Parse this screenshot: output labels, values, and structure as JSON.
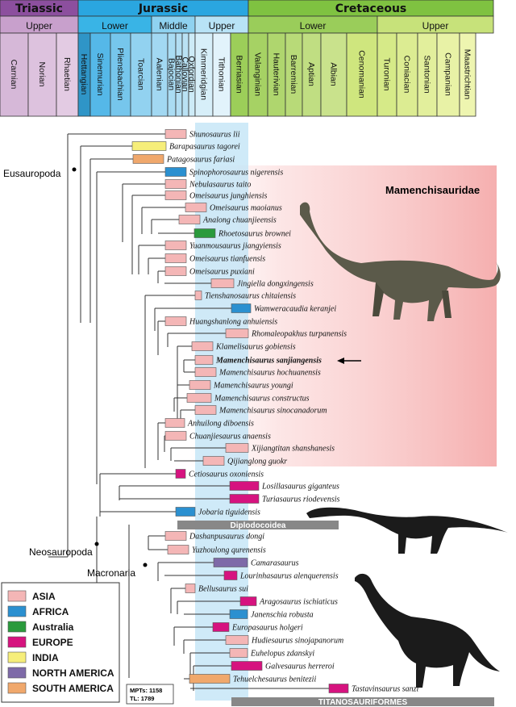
{
  "timescale": {
    "periods": [
      {
        "label": "Triassic",
        "color": "#8c4f9e"
      },
      {
        "label": "Jurassic",
        "color": "#2aa6e0"
      },
      {
        "label": "Cretaceous",
        "color": "#7fc241"
      }
    ],
    "epochs": [
      {
        "label": "Upper",
        "color": "#c8a0cc"
      },
      {
        "label": "Lower",
        "color": "#39b4e6"
      },
      {
        "label": "Middle",
        "color": "#8fd2f0"
      },
      {
        "label": "Upper",
        "color": "#b8e3f6"
      },
      {
        "label": "Lower",
        "color": "#9acd5a"
      },
      {
        "label": "Upper",
        "color": "#c7e27a"
      }
    ],
    "stages": [
      {
        "label": "Carnian",
        "color": "#d6b8d8"
      },
      {
        "label": "Norian",
        "color": "#ddc2de"
      },
      {
        "label": "Rhaetian",
        "color": "#e3cbe3"
      },
      {
        "label": "Hettangian",
        "color": "#2f95c7"
      },
      {
        "label": "Sinemurian",
        "color": "#55b8e8"
      },
      {
        "label": "Pliensbachian",
        "color": "#76c6ec"
      },
      {
        "label": "Toarcian",
        "color": "#92d2f0"
      },
      {
        "label": "Aalenian",
        "color": "#a2d8f2"
      },
      {
        "label": "Bajocian",
        "color": "#aadcf3"
      },
      {
        "label": "Bathonian",
        "color": "#b2def3"
      },
      {
        "label": "Callovian",
        "color": "#bae2f4"
      },
      {
        "label": "Oxfordian",
        "color": "#cdebf7"
      },
      {
        "label": "Kimmeridgian",
        "color": "#d7eff9"
      },
      {
        "label": "Tithonian",
        "color": "#e2f3fb"
      },
      {
        "label": "Berriasian",
        "color": "#9cce59"
      },
      {
        "label": "Valanginian",
        "color": "#a6d264"
      },
      {
        "label": "Hauterivian",
        "color": "#afd66e"
      },
      {
        "label": "Barremian",
        "color": "#b8da78"
      },
      {
        "label": "Aptian",
        "color": "#c0de82"
      },
      {
        "label": "Albian",
        "color": "#c9e28c"
      },
      {
        "label": "Cenomanian",
        "color": "#cfe67e"
      },
      {
        "label": "Turonian",
        "color": "#d6ea88"
      },
      {
        "label": "Coniacian",
        "color": "#dcec92"
      },
      {
        "label": "Santonian",
        "color": "#e2ef9c"
      },
      {
        "label": "Campanian",
        "color": "#e8f2a6"
      },
      {
        "label": "Maastrichtian",
        "color": "#eef5b0"
      }
    ]
  },
  "taxa": [
    {
      "name": "Shunosaurus lii",
      "region": "ASIA"
    },
    {
      "name": "Barapasaurus tagorei",
      "region": "INDIA"
    },
    {
      "name": "Patagosaurus fariasi",
      "region": "SOUTH AMERICA"
    },
    {
      "name": "Spinophorosaurus nigerensis",
      "region": "AFRICA"
    },
    {
      "name": "Nebulasaurus taito",
      "region": "ASIA"
    },
    {
      "name": "Omeisaurus junghiensis",
      "region": "ASIA"
    },
    {
      "name": "Omeisaurus maoianus",
      "region": "ASIA"
    },
    {
      "name": "Analong chuanjieensis",
      "region": "ASIA"
    },
    {
      "name": "Rhoetosaurus brownei",
      "region": "Australia"
    },
    {
      "name": "Yuanmousaurus jiangyiensis",
      "region": "ASIA"
    },
    {
      "name": "Omeisaurus tianfuensis",
      "region": "ASIA"
    },
    {
      "name": "Omeisaurus puxiani",
      "region": "ASIA"
    },
    {
      "name": "Jingiella dongxingensis",
      "region": "ASIA"
    },
    {
      "name": "Tienshanosaurus chitaiensis",
      "region": "ASIA"
    },
    {
      "name": "Wamweracaudia keranjei",
      "region": "AFRICA"
    },
    {
      "name": "Huangshanlong anhuiensis",
      "region": "ASIA"
    },
    {
      "name": "Rhomaleopakhus turpanensis",
      "region": "ASIA"
    },
    {
      "name": "Klamelisaurus gobiensis",
      "region": "ASIA"
    },
    {
      "name": "Mamenchisaurus sanjiangensis",
      "region": "ASIA"
    },
    {
      "name": "Mamenchisaurus hochuanensis",
      "region": "ASIA"
    },
    {
      "name": "Mamenchisaurus youngi",
      "region": "ASIA"
    },
    {
      "name": "Mamenchisaurus constructus",
      "region": "ASIA"
    },
    {
      "name": "Mamenchisaurus sinocanadorum",
      "region": "ASIA"
    },
    {
      "name": "Anhuilong diboensis",
      "region": "ASIA"
    },
    {
      "name": "Chuanjiesaurus anaensis",
      "region": "ASIA"
    },
    {
      "name": "Xijiangtitan shanshanesis",
      "region": "ASIA"
    },
    {
      "name": "Qijianglong guokr",
      "region": "ASIA"
    },
    {
      "name": "Cetiosaurus oxoniensis",
      "region": "EUROPE"
    },
    {
      "name": "Losillasaurus giganteus",
      "region": "EUROPE"
    },
    {
      "name": "Turiasaurus riodevensis",
      "region": "EUROPE"
    },
    {
      "name": "Jobaria tiguidensis",
      "region": "AFRICA"
    },
    {
      "name": "Dashanpusaurus dongi",
      "region": "ASIA"
    },
    {
      "name": "Yuzhoulong qurenensis",
      "region": "ASIA"
    },
    {
      "name": "Camarasaurus",
      "region": "NORTH AMERICA"
    },
    {
      "name": "Lourinhasaurus alenquerensis",
      "region": "EUROPE"
    },
    {
      "name": "Bellusaurus sui",
      "region": "ASIA"
    },
    {
      "name": "Aragosaurus ischiaticus",
      "region": "EUROPE"
    },
    {
      "name": "Janenschia robusta",
      "region": "AFRICA"
    },
    {
      "name": "Europasaurus holgeri",
      "region": "EUROPE"
    },
    {
      "name": "Hudiesaurus sinojapanorum",
      "region": "ASIA"
    },
    {
      "name": "Euhelopus zdanskyi",
      "region": "ASIA"
    },
    {
      "name": "Galvesaurus herreroi",
      "region": "EUROPE"
    },
    {
      "name": "Tehuelchesaurus benitezii",
      "region": "SOUTH AMERICA"
    },
    {
      "name": "Tastavinsaurus sanzi",
      "region": "EUROPE"
    }
  ],
  "highlight_taxon": "Mamenchisaurus sanjiangensis",
  "clade_bars": [
    {
      "label": "Diplodocoidea"
    },
    {
      "label": "TITANOSAURIFORMES"
    }
  ],
  "clade_labels": {
    "eusauropoda": "Eusauropoda",
    "neosauropoda": "Neosauropoda",
    "macronaria": "Macronaria",
    "mamenchisauridae": "Mamenchisauridae"
  },
  "legend": [
    {
      "label": "ASIA",
      "color": "#f4b6b6"
    },
    {
      "label": "AFRICA",
      "color": "#2b90d0"
    },
    {
      "label": "Australia",
      "color": "#2a9a3c"
    },
    {
      "label": "EUROPE",
      "color": "#d6137f"
    },
    {
      "label": "INDIA",
      "color": "#f6ee7a"
    },
    {
      "label": "NORTH AMERICA",
      "color": "#7e6aa8"
    },
    {
      "label": "SOUTH AMERICA",
      "color": "#f0a86c"
    }
  ],
  "stats": {
    "mpts": "MPTs: 1158",
    "tl": "TL: 1789"
  }
}
